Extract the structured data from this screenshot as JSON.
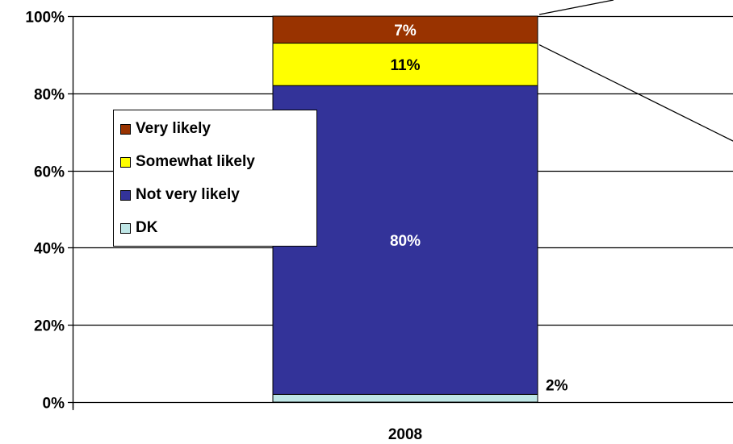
{
  "chart_data": {
    "type": "bar",
    "stacked": true,
    "categories": [
      "2008"
    ],
    "series": [
      {
        "name": "DK",
        "values": [
          2
        ],
        "color": "#bfe6e6",
        "label": "2%",
        "label_color": "#000000"
      },
      {
        "name": "Not very likely",
        "values": [
          80
        ],
        "color": "#333399",
        "label": "80%",
        "label_color": "#ffffff"
      },
      {
        "name": "Somewhat likely",
        "values": [
          11
        ],
        "color": "#ffff00",
        "label": "11%",
        "label_color": "#000000"
      },
      {
        "name": "Very likely",
        "values": [
          7
        ],
        "color": "#993300",
        "label": "7%",
        "label_color": "#ffffff"
      }
    ],
    "y_ticks": [
      "0%",
      "20%",
      "40%",
      "60%",
      "80%",
      "100%"
    ],
    "ylim": [
      0,
      100
    ],
    "grid": true,
    "legend_position": "left inside plot",
    "legend": [
      "Very likely",
      "Somewhat likely",
      "Not very likely",
      "DK"
    ]
  }
}
